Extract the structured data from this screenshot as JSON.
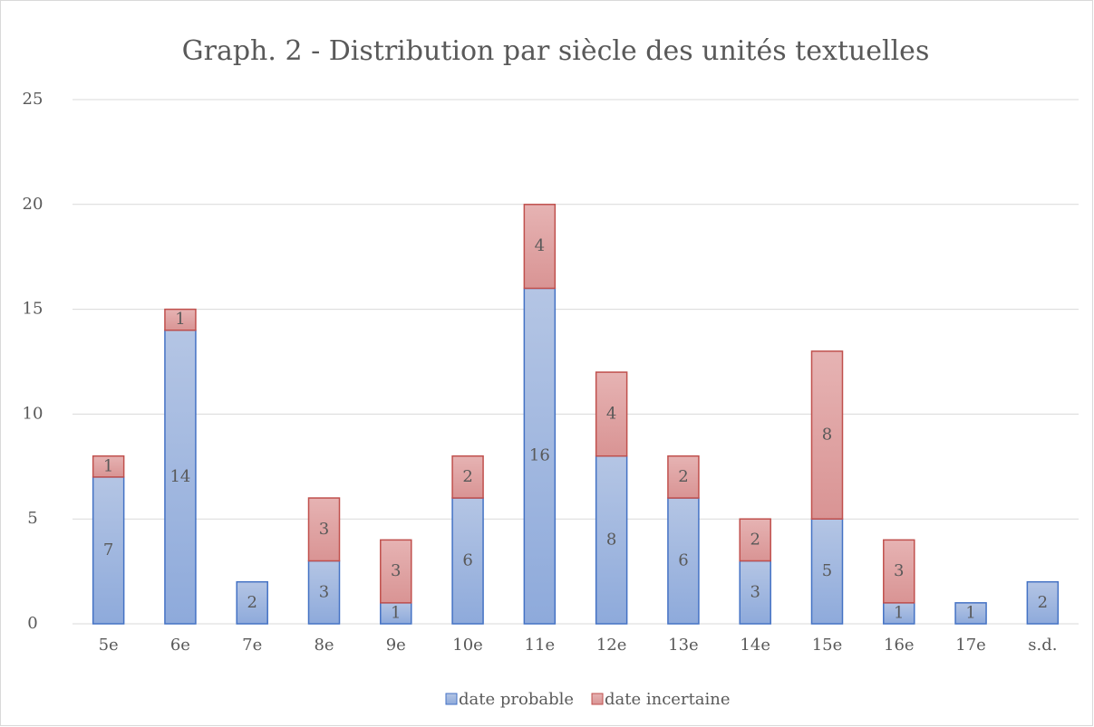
{
  "chart_data": {
    "type": "stacked_bar",
    "title": "Graph. 2 - Distribution par siècle des unités textuelles",
    "categories": [
      "5e",
      "6e",
      "7e",
      "8e",
      "9e",
      "10e",
      "11e",
      "12e",
      "13e",
      "14e",
      "15e",
      "16e",
      "17e",
      "s.d."
    ],
    "series": [
      {
        "name": "date probable",
        "color": "#4472c4",
        "values": [
          7,
          14,
          2,
          3,
          1,
          6,
          16,
          8,
          6,
          3,
          5,
          1,
          1,
          2
        ]
      },
      {
        "name": "date incertaine",
        "color": "#c0504d",
        "values": [
          1,
          1,
          null,
          3,
          3,
          2,
          4,
          4,
          2,
          2,
          8,
          3,
          null,
          null
        ]
      }
    ],
    "ylim": [
      0,
      25
    ],
    "yticks": [
      0,
      5,
      10,
      15,
      20,
      25
    ],
    "grid": true,
    "legend": "bottom"
  }
}
